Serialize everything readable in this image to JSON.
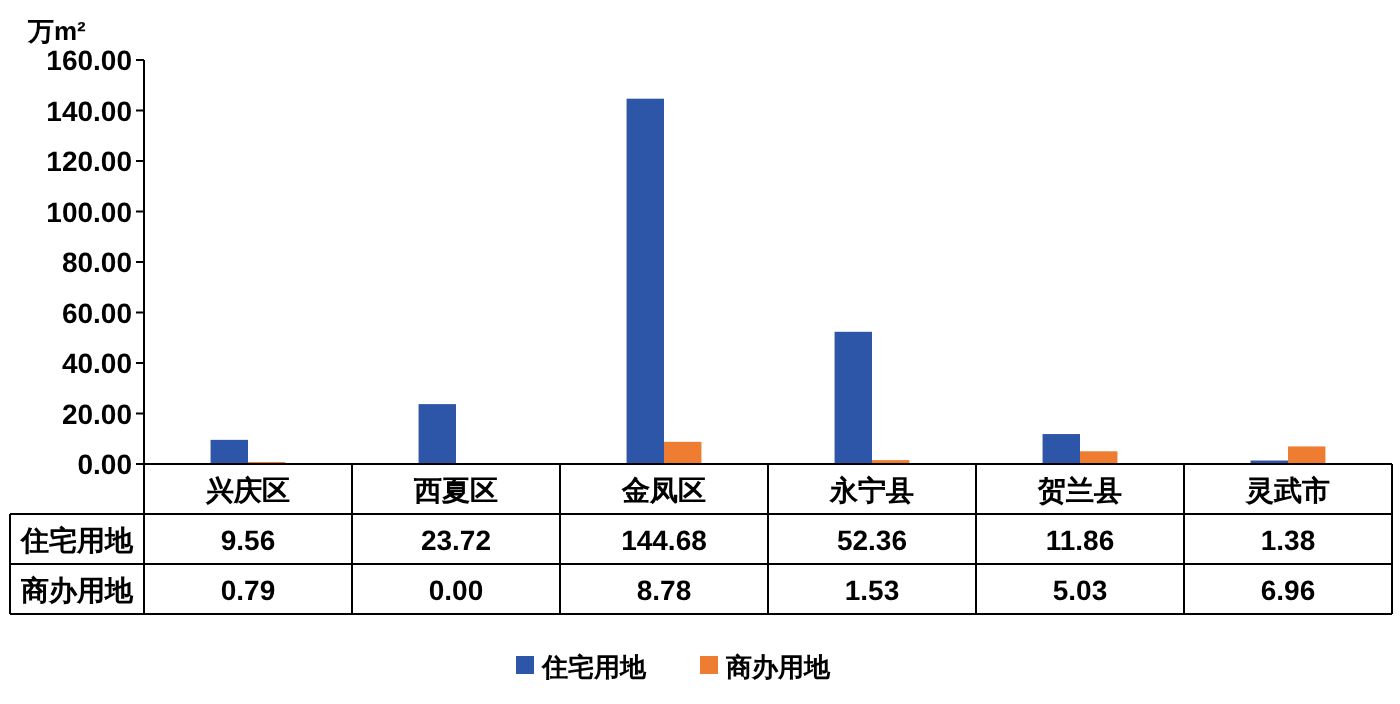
{
  "chart_data": {
    "type": "bar",
    "ylabel": "万m²",
    "categories": [
      "兴庆区",
      "西夏区",
      "金凤区",
      "永宁县",
      "贺兰县",
      "灵武市"
    ],
    "series": [
      {
        "name": "住宅用地",
        "color": "#2e56a8",
        "values": [
          9.56,
          23.72,
          144.68,
          52.36,
          11.86,
          1.38
        ],
        "value_labels": [
          "9.56",
          "23.72",
          "144.68",
          "52.36",
          "11.86",
          "1.38"
        ]
      },
      {
        "name": "商办用地",
        "color": "#ee7d31",
        "values": [
          0.79,
          0.0,
          8.78,
          1.53,
          5.03,
          6.96
        ],
        "value_labels": [
          "0.79",
          "0.00",
          "8.78",
          "1.53",
          "5.03",
          "6.96"
        ]
      }
    ],
    "ylim": [
      0,
      160
    ],
    "yticks": [
      {
        "value": 0,
        "label": "0.00"
      },
      {
        "value": 20,
        "label": "20.00"
      },
      {
        "value": 40,
        "label": "40.00"
      },
      {
        "value": 60,
        "label": "60.00"
      },
      {
        "value": 80,
        "label": "80.00"
      },
      {
        "value": 100,
        "label": "100.00"
      },
      {
        "value": 120,
        "label": "120.00"
      },
      {
        "value": 140,
        "label": "140.00"
      },
      {
        "value": 160,
        "label": "160.00"
      }
    ],
    "legend": "bottom",
    "grid": false
  }
}
